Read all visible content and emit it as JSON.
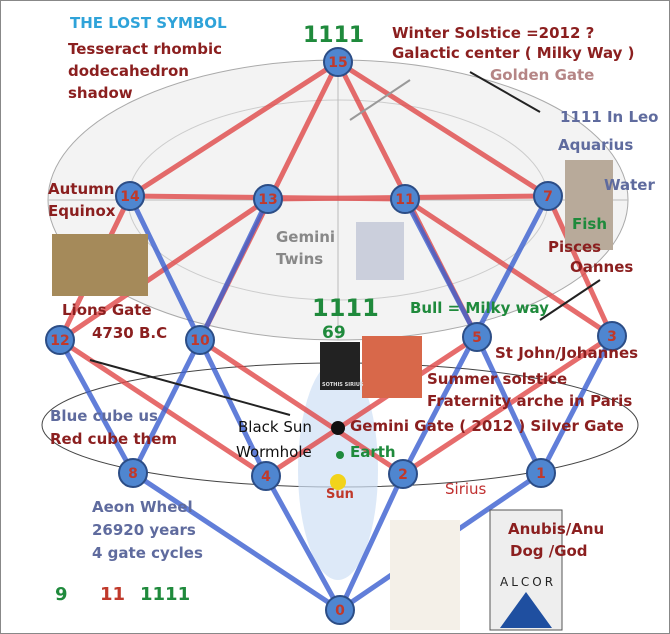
{
  "header": {
    "title": "THE LOST SYMBOL",
    "subtitle_lines": [
      "Tesseract rhombic",
      "dodecahedron",
      "shadow"
    ]
  },
  "nodes": [
    {
      "label": "15"
    },
    {
      "label": "14"
    },
    {
      "label": "13"
    },
    {
      "label": "11"
    },
    {
      "label": "7"
    },
    {
      "label": "12"
    },
    {
      "label": "10"
    },
    {
      "label": "5"
    },
    {
      "label": "3"
    },
    {
      "label": "8"
    },
    {
      "label": "4"
    },
    {
      "label": "2"
    },
    {
      "label": "1"
    },
    {
      "label": "0"
    }
  ],
  "labels": {
    "top_number": "1111",
    "winter": "Winter Solstice =2012 ?",
    "galactic": "Galactic center ( Milky Way )",
    "golden": "Golden Gate",
    "leo": "1111 In Leo",
    "aquarius": "Aquarius",
    "water": "Water",
    "fish": "Fish",
    "pisces": "Pisces",
    "oannes": "Oannes",
    "autumn": "Autumn",
    "equinox": "Equinox",
    "gemini": "Gemini",
    "twins": "Twins",
    "lions": "Lions Gate",
    "bc": "4730 B.C",
    "center_number": "1111",
    "sixty_nine": "69",
    "bull": "Bull = Milky way",
    "st_john": "St John/Johannes",
    "summer": "Summer solstice",
    "fraternity": "Fraternity arche in Paris",
    "gemini_gate": "Gemini Gate ( 2012 ) Silver Gate",
    "blue_cube": "Blue cube us",
    "red_cube": "Red cube them",
    "black_sun": "Black Sun",
    "wormhole": "Wormhole",
    "earth": "Earth",
    "sun": "Sun",
    "sirius": "Sirius",
    "anubis": "Anubis/Anu",
    "dog": "Dog /God",
    "aeon": "Aeon Wheel",
    "years": "26920 years",
    "cycles": "4 gate cycles",
    "nine": "9",
    "eleven": "11",
    "ones": "1111",
    "alcor": "ALCOR",
    "sothis": "SOTHIS SIRIUS"
  }
}
